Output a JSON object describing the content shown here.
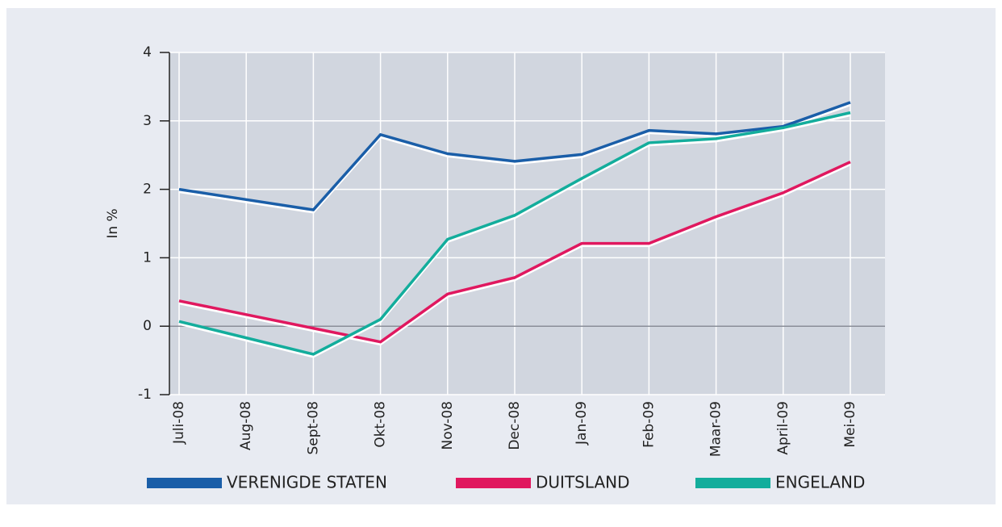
{
  "chart_data": {
    "type": "line",
    "y_label": "In %",
    "categories": [
      "Juli-08",
      "Aug-08",
      "Sept-08",
      "Okt-08",
      "Nov-08",
      "Dec-08",
      "Jan-09",
      "Feb-09",
      "Maar-09",
      "April-09",
      "Mei-09"
    ],
    "series": [
      {
        "name": "VERENIGDE STATEN",
        "color": "#1a5ea8",
        "values": [
          2.0,
          1.85,
          1.7,
          2.8,
          2.52,
          2.41,
          2.51,
          2.86,
          2.81,
          2.92,
          3.27
        ]
      },
      {
        "name": "DUITSLAND",
        "color": "#e0185f",
        "values": [
          0.37,
          0.17,
          -0.03,
          -0.23,
          0.47,
          0.71,
          1.21,
          1.21,
          1.6,
          1.95,
          2.4
        ]
      },
      {
        "name": "ENGELAND",
        "color": "#13ad9c",
        "values": [
          0.07,
          -0.17,
          -0.41,
          0.1,
          1.27,
          1.62,
          2.16,
          2.68,
          2.74,
          2.9,
          3.12
        ]
      }
    ],
    "ylim": [
      -1,
      4
    ],
    "yticks": [
      -1,
      0,
      1,
      2,
      3,
      4
    ],
    "grid": true
  }
}
